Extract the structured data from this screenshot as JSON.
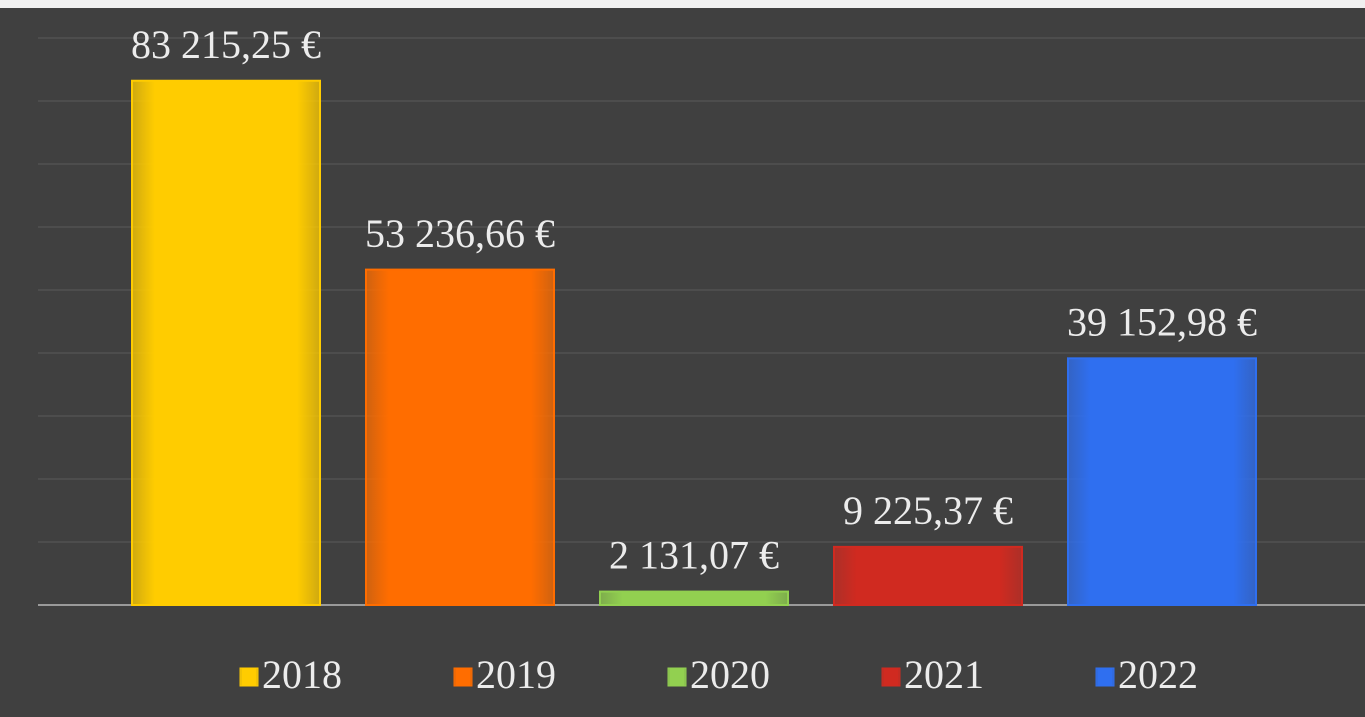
{
  "chart_data": {
    "type": "bar",
    "categories": [
      null
    ],
    "series": [
      {
        "name": "2018",
        "color": "#ffcc00",
        "values": [
          83215.25
        ],
        "value_labels": [
          "83 215,25 €"
        ]
      },
      {
        "name": "2019",
        "color": "#ff6d00",
        "values": [
          53236.66
        ],
        "value_labels": [
          "53 236,66 €"
        ]
      },
      {
        "name": "2020",
        "color": "#92d050",
        "values": [
          2131.07
        ],
        "value_labels": [
          "2 131,07 €"
        ]
      },
      {
        "name": "2021",
        "color": "#d02a20",
        "values": [
          9225.37
        ],
        "value_labels": [
          "9 225,37 €"
        ]
      },
      {
        "name": "2022",
        "color": "#2f6ff0",
        "values": [
          39152.98
        ],
        "value_labels": [
          "39 152,98 €"
        ]
      }
    ],
    "ylim": [
      0,
      90000
    ],
    "yticks": [
      0,
      10000,
      20000,
      30000,
      40000,
      50000,
      60000,
      70000,
      80000,
      90000
    ],
    "grid": true,
    "legend": "bottom"
  }
}
